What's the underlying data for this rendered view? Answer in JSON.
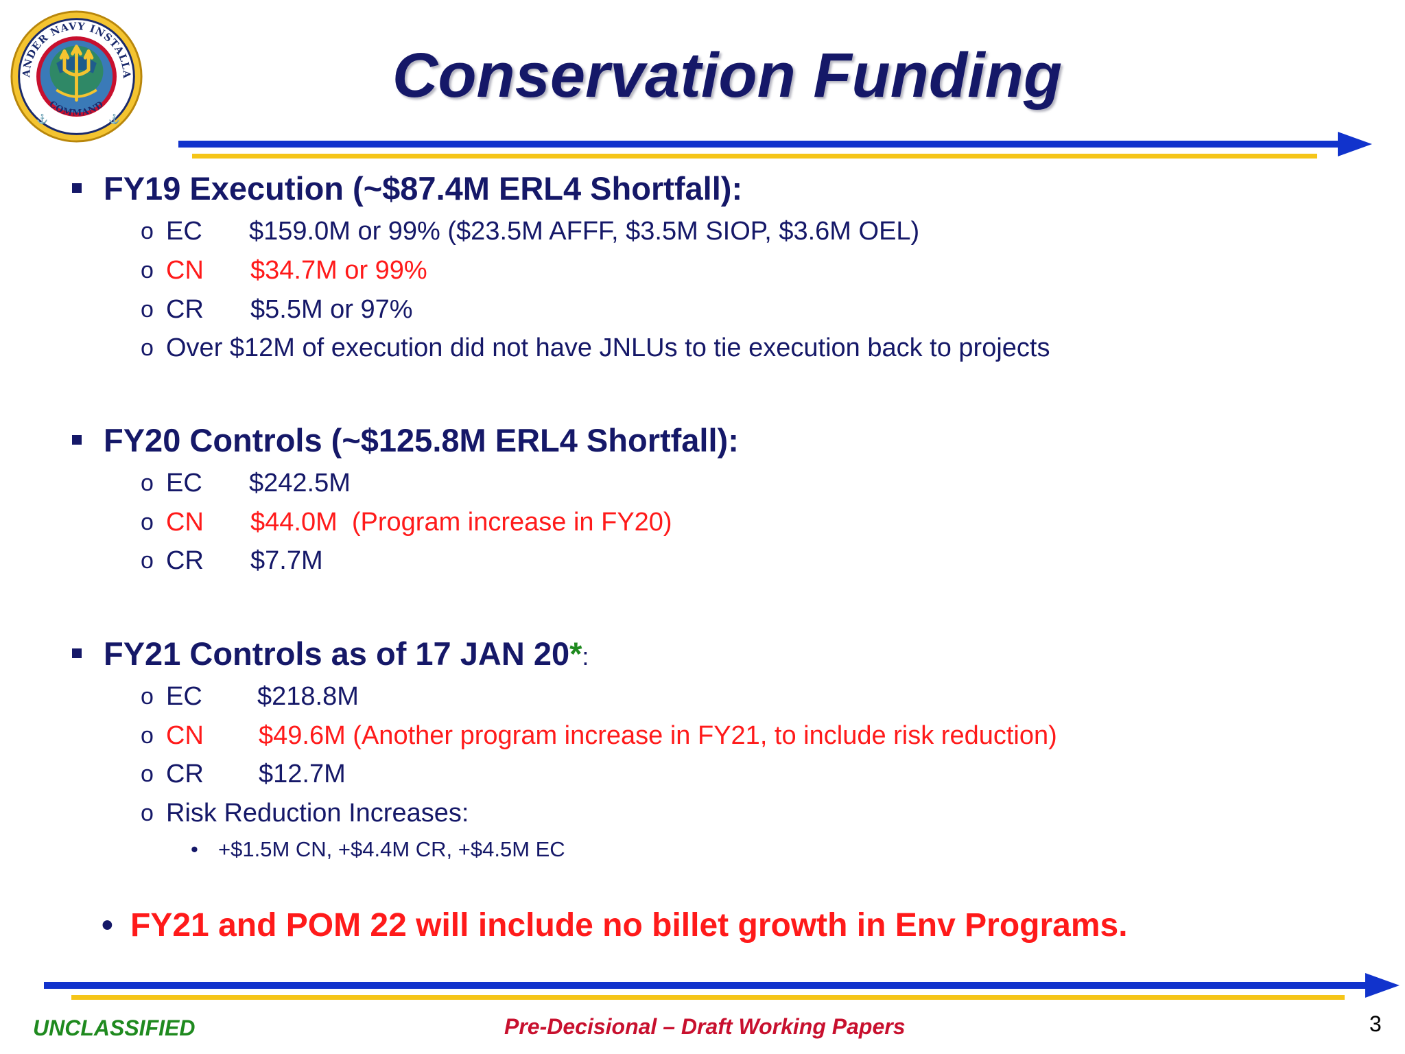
{
  "slide": {
    "title": "Conservation Funding",
    "logo": {
      "icon": "cni-command-seal-icon",
      "text_top": "COMMANDER NAVY INSTALLATIONS",
      "text_bottom": "COMMAND"
    },
    "sections": [
      {
        "heading": "FY19 Execution (~$87.4M ERL4 Shortfall):",
        "items": [
          {
            "code": "EC",
            "value": "$159.0M or 99% ($23.5M AFFF, $3.5M SIOP, $3.6M OEL)",
            "color": "#151868"
          },
          {
            "code": "CN",
            "value": "$34.7M or 99%",
            "color": "#ff1a1a"
          },
          {
            "code": "CR",
            "value": "$5.5M or 97%",
            "color": "#151868"
          },
          {
            "text": "Over $12M of execution did not have JNLUs to tie execution back to projects"
          }
        ]
      },
      {
        "heading": "FY20 Controls (~$125.8M ERL4 Shortfall):",
        "items": [
          {
            "code": "EC",
            "value": "$242.5M",
            "color": "#151868"
          },
          {
            "code": "CN",
            "value": "$44.0M  (Program increase in FY20)",
            "color": "#ff1a1a"
          },
          {
            "code": "CR",
            "value": "$7.7M",
            "color": "#151868"
          }
        ]
      },
      {
        "heading": "FY21 Controls as of 17 JAN 20",
        "heading_star": "*",
        "heading_colon": ":",
        "items": [
          {
            "code": "EC",
            "value": "$218.8M",
            "color": "#151868"
          },
          {
            "code": "CN",
            "value": "$49.6M (Another program increase in FY21, to include risk reduction)",
            "color": "#ff1a1a"
          },
          {
            "code": "CR",
            "value": "$12.7M",
            "color": "#151868"
          },
          {
            "text": "Risk Reduction Increases:"
          }
        ],
        "subitems": [
          "+$1.5M CN, +$4.4M CR, +$4.5M EC"
        ]
      }
    ],
    "callout": "FY21 and POM 22 will include no billet growth in Env Programs.",
    "bullets": {
      "square": "▪",
      "circle": "o",
      "dot": "•"
    },
    "footer": {
      "classification": "UNCLASSIFIED",
      "marking": "Pre-Decisional – Draft Working Papers",
      "page_number": "3"
    },
    "colors": {
      "navy_text": "#151868",
      "red_text": "#ff1a1a",
      "green_text": "#1f8a1f",
      "rule_blue": "#1133cc",
      "rule_gold": "#f5c518"
    }
  }
}
